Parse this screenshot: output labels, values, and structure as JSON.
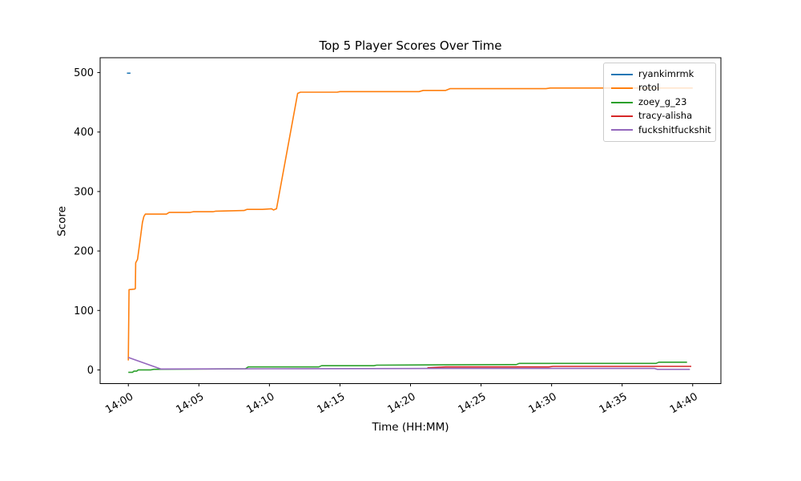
{
  "figure": {
    "title": "Top 5 Player Scores Over Time",
    "xlabel": "Time (HH:MM)",
    "ylabel": "Score"
  },
  "chart_data": {
    "type": "line",
    "title": "Top 5 Player Scores Over Time",
    "xlabel": "Time (HH:MM)",
    "ylabel": "Score",
    "grid": false,
    "legend_position": "upper right",
    "x_axis": {
      "unit": "minutes after 14:00",
      "xlim": [
        -2,
        42
      ],
      "tick_values": [
        0,
        5,
        10,
        15,
        20,
        25,
        30,
        35,
        40
      ],
      "tick_labels": [
        "14:00",
        "14:05",
        "14:10",
        "14:15",
        "14:20",
        "14:25",
        "14:30",
        "14:35",
        "14:40"
      ],
      "tick_label_rotation_deg": -30
    },
    "y_axis": {
      "ylim": [
        -23,
        525
      ],
      "tick_values": [
        0,
        100,
        200,
        300,
        400,
        500
      ],
      "tick_labels": [
        "0",
        "100",
        "200",
        "300",
        "400",
        "500"
      ]
    },
    "series": [
      {
        "name": "ryankimrmk",
        "color": "#1f77b4",
        "points": [
          [
            -0.1,
            499
          ],
          [
            0.15,
            499
          ]
        ]
      },
      {
        "name": "rotol",
        "color": "#ff7f0e",
        "points": [
          [
            0,
            16
          ],
          [
            0.05,
            135
          ],
          [
            0.45,
            136
          ],
          [
            0.5,
            137
          ],
          [
            0.52,
            180
          ],
          [
            0.65,
            186
          ],
          [
            0.8,
            212
          ],
          [
            1.0,
            248
          ],
          [
            1.1,
            258
          ],
          [
            1.2,
            262
          ],
          [
            2.7,
            262
          ],
          [
            2.9,
            265
          ],
          [
            4.4,
            265
          ],
          [
            4.6,
            266
          ],
          [
            6.0,
            266
          ],
          [
            6.2,
            267
          ],
          [
            8.2,
            268
          ],
          [
            8.4,
            270
          ],
          [
            9.5,
            270
          ],
          [
            10.15,
            271
          ],
          [
            10.3,
            269
          ],
          [
            10.5,
            271
          ],
          [
            12.0,
            465
          ],
          [
            12.2,
            467
          ],
          [
            14.8,
            467
          ],
          [
            15.0,
            468
          ],
          [
            20.6,
            468
          ],
          [
            20.9,
            470
          ],
          [
            22.5,
            470
          ],
          [
            22.8,
            473
          ],
          [
            29.6,
            473
          ],
          [
            29.9,
            474
          ],
          [
            40.0,
            474
          ]
        ]
      },
      {
        "name": "zoey_g_23",
        "color": "#2ca02c",
        "points": [
          [
            0,
            -4
          ],
          [
            0.3,
            -4
          ],
          [
            0.4,
            -2
          ],
          [
            0.6,
            -2
          ],
          [
            0.7,
            0
          ],
          [
            1.6,
            0
          ],
          [
            1.8,
            1
          ],
          [
            5.5,
            1.5
          ],
          [
            8.3,
            2
          ],
          [
            8.5,
            5
          ],
          [
            13.5,
            5
          ],
          [
            13.7,
            7
          ],
          [
            17.4,
            7
          ],
          [
            17.6,
            8
          ],
          [
            22.5,
            8.5
          ],
          [
            27.5,
            9
          ],
          [
            27.7,
            11
          ],
          [
            37.4,
            11
          ],
          [
            37.6,
            13
          ],
          [
            39.6,
            13
          ]
        ]
      },
      {
        "name": "tracy-alisha",
        "color": "#d62728",
        "points": [
          [
            21.2,
            3.5
          ],
          [
            22.5,
            5
          ],
          [
            29.8,
            5
          ],
          [
            30.1,
            6
          ],
          [
            39.9,
            6
          ]
        ]
      },
      {
        "name": "fuckshitfuckshit",
        "color": "#9467bd",
        "points": [
          [
            0,
            21
          ],
          [
            2.3,
            1.5
          ],
          [
            10.0,
            2
          ],
          [
            22.0,
            2.5
          ],
          [
            37.3,
            2.5
          ],
          [
            37.5,
            1
          ],
          [
            39.8,
            1
          ]
        ]
      }
    ]
  }
}
